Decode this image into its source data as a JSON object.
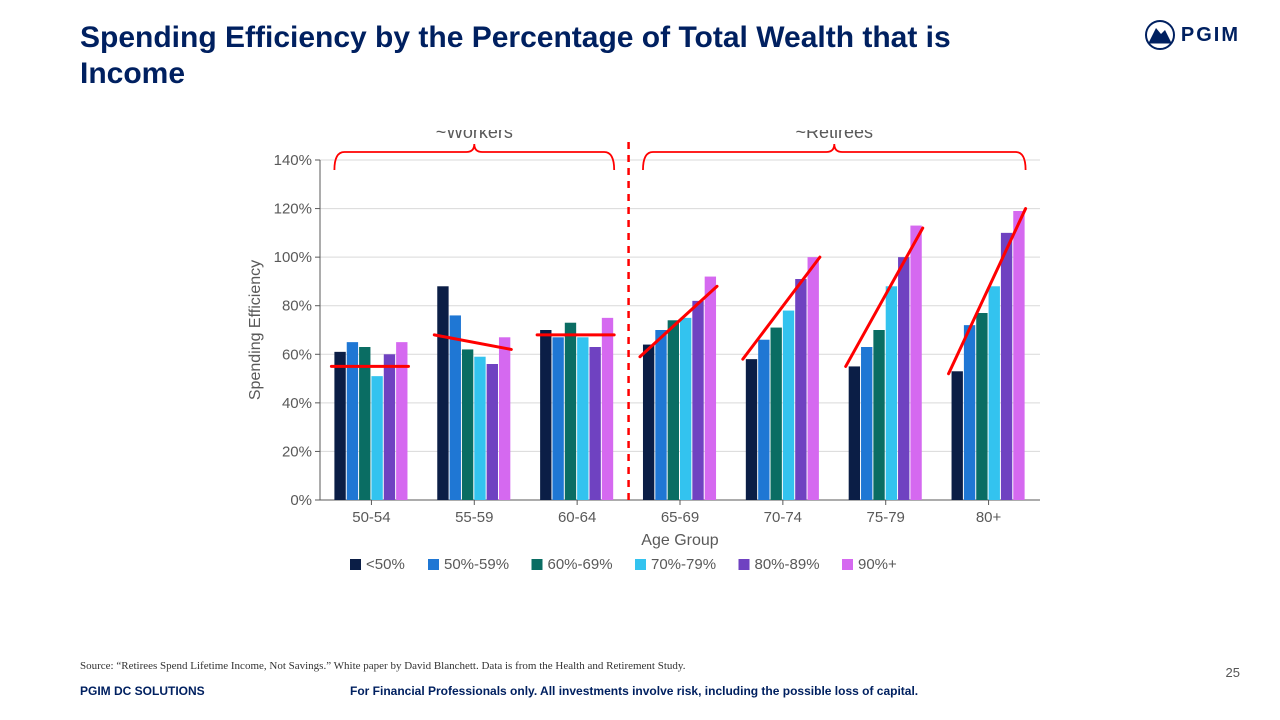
{
  "title": "Spending Efficiency by the Percentage of Total Wealth that is Income",
  "brand": {
    "name": "PGIM"
  },
  "source": "Source: “Retirees Spend Lifetime Income, Not Savings.” White paper by David Blanchett.  Data is from the Health and Retirement Study.",
  "footer_left": "PGIM DC SOLUTIONS",
  "footer_mid": "For Financial Professionals only. All investments involve risk, including the possible loss of capital.",
  "page_number": "25",
  "chart": {
    "type": "grouped-bar",
    "ylabel": "Spending Efficiency",
    "xlabel": "Age Group",
    "ylim": [
      0,
      140
    ],
    "ytick_step": 20,
    "tick_suffix": "%",
    "categories": [
      "50-54",
      "55-59",
      "60-64",
      "65-69",
      "70-74",
      "75-79",
      "80+"
    ],
    "series": [
      {
        "name": "<50%",
        "color": "#0b1e46",
        "values": [
          61,
          88,
          70,
          64,
          58,
          55,
          53
        ]
      },
      {
        "name": "50%-59%",
        "color": "#1f77d4",
        "values": [
          65,
          76,
          67,
          70,
          66,
          63,
          72
        ]
      },
      {
        "name": "60%-69%",
        "color": "#0a6d63",
        "values": [
          63,
          62,
          73,
          74,
          71,
          70,
          77
        ]
      },
      {
        "name": "70%-79%",
        "color": "#33c3ef",
        "values": [
          51,
          59,
          67,
          75,
          78,
          88,
          88
        ]
      },
      {
        "name": "80%-89%",
        "color": "#6f42c1",
        "values": [
          60,
          56,
          63,
          82,
          91,
          100,
          110
        ]
      },
      {
        "name": "90%+",
        "color": "#d569f0",
        "values": [
          65,
          67,
          75,
          92,
          100,
          113,
          119
        ]
      }
    ],
    "annotations": {
      "workers_label": "~Workers",
      "retirees_label": "~Retirees",
      "workers_span": [
        0,
        2
      ],
      "retirees_span": [
        3,
        6
      ],
      "divider_after_index": 2,
      "trend_lines": [
        {
          "group": 0,
          "start_val": 55,
          "end_val": 55
        },
        {
          "group": 1,
          "start_val": 68,
          "end_val": 62
        },
        {
          "group": 2,
          "start_val": 68,
          "end_val": 68
        },
        {
          "group": 3,
          "start_val": 59,
          "end_val": 88
        },
        {
          "group": 4,
          "start_val": 58,
          "end_val": 100
        },
        {
          "group": 5,
          "start_val": 55,
          "end_val": 112
        },
        {
          "group": 6,
          "start_val": 52,
          "end_val": 120
        }
      ],
      "trend_color": "#ff0000",
      "trend_width": 3,
      "bracket_color": "#ff0000"
    },
    "style": {
      "axis_font_size": 15,
      "label_font_size": 16,
      "legend_font_size": 15,
      "annot_font_size": 18,
      "grid_color": "#d9d9d9",
      "axis_color": "#595959",
      "background": "#ffffff",
      "bar_width_ratio": 0.12,
      "group_gap_ratio": 0.2
    }
  }
}
